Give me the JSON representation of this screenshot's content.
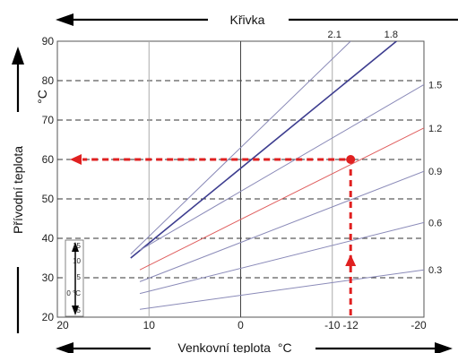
{
  "chart_data": {
    "type": "line",
    "title": "Křivka",
    "xlabel": "Venkovní teplota",
    "xunit": "°C",
    "ylabel": "Přívodní teplota",
    "yunit": "°C",
    "xlim": [
      20,
      -20
    ],
    "ylim": [
      20,
      90
    ],
    "x_ticks": [
      "20",
      "10",
      "0",
      "-10",
      "-12",
      "-20"
    ],
    "y_ticks": [
      "20",
      "30",
      "40",
      "50",
      "60",
      "70",
      "80",
      "90"
    ],
    "series": [
      {
        "name": "2.1",
        "color": "#8a8ab8",
        "x": [
          12,
          -12
        ],
        "y": [
          36,
          90
        ]
      },
      {
        "name": "1.8",
        "color": "#3d3d8f",
        "x": [
          12,
          -17
        ],
        "y": [
          35,
          90
        ]
      },
      {
        "name": "1.5",
        "color": "#8a8ab8",
        "x": [
          11,
          -20
        ],
        "y": [
          37,
          79
        ]
      },
      {
        "name": "1.2",
        "color": "#e06060",
        "x": [
          11,
          -20
        ],
        "y": [
          32,
          68
        ]
      },
      {
        "name": "0.9",
        "color": "#8a8ab8",
        "x": [
          11,
          -20
        ],
        "y": [
          29,
          57
        ]
      },
      {
        "name": "0.6",
        "color": "#8a8ab8",
        "x": [
          11,
          -20
        ],
        "y": [
          26,
          44
        ]
      },
      {
        "name": "0.3",
        "color": "#8a8ab8",
        "x": [
          11,
          -20
        ],
        "y": [
          22,
          32
        ]
      }
    ],
    "left_curve_labels": [
      "2.1",
      "1.8"
    ],
    "right_curve_labels": [
      "1.5",
      "1.2",
      "0.9",
      "0.6",
      "0.3"
    ],
    "example": {
      "outdoor": -12,
      "supply": 60,
      "color": "#e02020"
    },
    "offset_scale": {
      "labels": [
        "15",
        "10",
        "5",
        "0 °C",
        "-5"
      ]
    },
    "grid": {
      "dashed_y": [
        80,
        70,
        60,
        50,
        40,
        30
      ],
      "solid_x": [
        10,
        0,
        -10
      ]
    }
  }
}
